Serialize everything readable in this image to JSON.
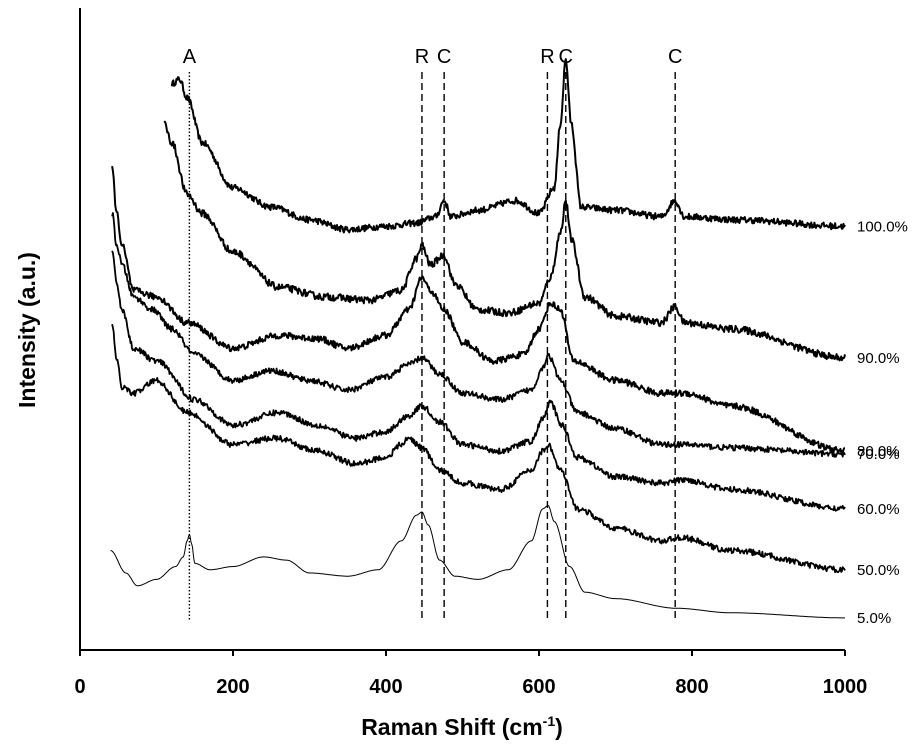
{
  "chart_data": {
    "type": "line",
    "title": "",
    "xlabel": "Raman Shift (cm",
    "xlabel_sup": "-1",
    "xlabel_end": ")",
    "ylabel": "Intensity (a.u.)",
    "xlim": [
      0,
      1000
    ],
    "ylim": [
      0,
      100
    ],
    "x_ticks": [
      "0",
      "200",
      "400",
      "600",
      "800",
      "1000"
    ],
    "grid": false,
    "legend": "none",
    "peak_markers": [
      {
        "label": "A",
        "x": 143,
        "style": "dotted"
      },
      {
        "label": "R",
        "x": 447,
        "style": "dashed"
      },
      {
        "label": "C",
        "x": 476,
        "style": "dashed"
      },
      {
        "label": "R",
        "x": 611,
        "style": "dashed"
      },
      {
        "label": "C",
        "x": 635,
        "style": "dashed"
      },
      {
        "label": "C",
        "x": 778,
        "style": "dashed"
      }
    ],
    "series": [
      {
        "name": "100.0%",
        "noise": 0.5,
        "stroke": 2,
        "points": [
          [
            120,
            88.2
          ],
          [
            130,
            88.9
          ],
          [
            140,
            86
          ],
          [
            160,
            79
          ],
          [
            200,
            72
          ],
          [
            250,
            69
          ],
          [
            300,
            67
          ],
          [
            350,
            65.5
          ],
          [
            400,
            66
          ],
          [
            440,
            66.5
          ],
          [
            465,
            67.5
          ],
          [
            476,
            70
          ],
          [
            485,
            67.5
          ],
          [
            520,
            68.5
          ],
          [
            570,
            70
          ],
          [
            600,
            68
          ],
          [
            620,
            72
          ],
          [
            628,
            82
          ],
          [
            635,
            92
          ],
          [
            642,
            82
          ],
          [
            655,
            69
          ],
          [
            700,
            68.5
          ],
          [
            760,
            67.5
          ],
          [
            778,
            70
          ],
          [
            790,
            67.5
          ],
          [
            860,
            67
          ],
          [
            1000,
            66
          ]
        ]
      },
      {
        "name": "90.0%",
        "noise": 0.55,
        "stroke": 2,
        "points": [
          [
            110,
            82
          ],
          [
            120,
            79
          ],
          [
            140,
            71
          ],
          [
            160,
            68
          ],
          [
            200,
            62
          ],
          [
            260,
            56.5
          ],
          [
            320,
            55
          ],
          [
            380,
            54.5
          ],
          [
            420,
            56
          ],
          [
            440,
            61
          ],
          [
            447,
            63
          ],
          [
            458,
            60
          ],
          [
            476,
            61.5
          ],
          [
            490,
            57
          ],
          [
            520,
            53
          ],
          [
            560,
            52.5
          ],
          [
            600,
            54
          ],
          [
            615,
            58
          ],
          [
            628,
            65
          ],
          [
            635,
            70
          ],
          [
            642,
            64
          ],
          [
            660,
            55
          ],
          [
            700,
            52
          ],
          [
            760,
            51
          ],
          [
            778,
            53.5
          ],
          [
            790,
            51
          ],
          [
            850,
            50
          ],
          [
            1000,
            45.5
          ]
        ]
      },
      {
        "name": "80.0%",
        "noise": 0.5,
        "stroke": 2,
        "points": [
          [
            42,
            75
          ],
          [
            48,
            68
          ],
          [
            55,
            63
          ],
          [
            70,
            56
          ],
          [
            100,
            55
          ],
          [
            140,
            51
          ],
          [
            200,
            47
          ],
          [
            260,
            49
          ],
          [
            310,
            48.5
          ],
          [
            350,
            47
          ],
          [
            400,
            49
          ],
          [
            430,
            53
          ],
          [
            447,
            58
          ],
          [
            458,
            56
          ],
          [
            476,
            53
          ],
          [
            500,
            48
          ],
          [
            540,
            45
          ],
          [
            580,
            46
          ],
          [
            600,
            50
          ],
          [
            615,
            54
          ],
          [
            628,
            53
          ],
          [
            645,
            45
          ],
          [
            700,
            42
          ],
          [
            760,
            40
          ],
          [
            790,
            40
          ],
          [
            850,
            38
          ],
          [
            1000,
            31
          ]
        ]
      },
      {
        "name": "70.0%",
        "noise": 0.45,
        "stroke": 1.8,
        "points": [
          [
            42,
            68
          ],
          [
            48,
            63
          ],
          [
            55,
            60
          ],
          [
            70,
            55
          ],
          [
            95,
            53
          ],
          [
            120,
            50
          ],
          [
            150,
            46
          ],
          [
            200,
            42
          ],
          [
            250,
            43.5
          ],
          [
            300,
            42
          ],
          [
            350,
            40.5
          ],
          [
            400,
            42.5
          ],
          [
            430,
            44.5
          ],
          [
            447,
            45.5
          ],
          [
            470,
            43
          ],
          [
            500,
            40
          ],
          [
            550,
            39
          ],
          [
            590,
            40.5
          ],
          [
            605,
            44
          ],
          [
            612,
            46
          ],
          [
            628,
            42
          ],
          [
            650,
            37
          ],
          [
            700,
            34.5
          ],
          [
            760,
            32
          ],
          [
            790,
            32
          ],
          [
            850,
            31.5
          ],
          [
            1000,
            30.5
          ]
        ]
      },
      {
        "name": "60.0%",
        "noise": 0.45,
        "stroke": 1.8,
        "points": [
          [
            42,
            62
          ],
          [
            48,
            57
          ],
          [
            55,
            53
          ],
          [
            70,
            47
          ],
          [
            100,
            45
          ],
          [
            150,
            39
          ],
          [
            200,
            35
          ],
          [
            260,
            37
          ],
          [
            310,
            35
          ],
          [
            360,
            33
          ],
          [
            400,
            34
          ],
          [
            430,
            36.5
          ],
          [
            447,
            38
          ],
          [
            470,
            35.5
          ],
          [
            500,
            32
          ],
          [
            550,
            31
          ],
          [
            590,
            32.5
          ],
          [
            605,
            36
          ],
          [
            615,
            38.5
          ],
          [
            630,
            35
          ],
          [
            650,
            30
          ],
          [
            700,
            27
          ],
          [
            760,
            26
          ],
          [
            790,
            26.5
          ],
          [
            850,
            25
          ],
          [
            1000,
            22
          ]
        ]
      },
      {
        "name": "50.0%",
        "noise": 0.45,
        "stroke": 1.8,
        "points": [
          [
            42,
            51
          ],
          [
            48,
            45
          ],
          [
            55,
            41
          ],
          [
            70,
            40
          ],
          [
            100,
            42
          ],
          [
            140,
            37
          ],
          [
            200,
            32
          ],
          [
            255,
            33
          ],
          [
            310,
            31
          ],
          [
            360,
            29
          ],
          [
            400,
            30
          ],
          [
            420,
            32
          ],
          [
            430,
            33
          ],
          [
            447,
            31.5
          ],
          [
            470,
            28
          ],
          [
            500,
            26
          ],
          [
            550,
            25
          ],
          [
            590,
            28
          ],
          [
            605,
            31
          ],
          [
            612,
            32
          ],
          [
            628,
            28
          ],
          [
            650,
            22
          ],
          [
            700,
            19
          ],
          [
            760,
            17
          ],
          [
            785,
            17.5
          ],
          [
            850,
            15.5
          ],
          [
            1000,
            12.5
          ]
        ]
      },
      {
        "name": "5.0%",
        "noise": 0,
        "stroke": 1,
        "points": [
          [
            40,
            15.5
          ],
          [
            60,
            12
          ],
          [
            75,
            10
          ],
          [
            100,
            11
          ],
          [
            125,
            13
          ],
          [
            135,
            14.5
          ],
          [
            140,
            17
          ],
          [
            143,
            18
          ],
          [
            146,
            16.5
          ],
          [
            150,
            13.5
          ],
          [
            170,
            12.5
          ],
          [
            200,
            13
          ],
          [
            240,
            14.5
          ],
          [
            270,
            14
          ],
          [
            300,
            12
          ],
          [
            350,
            11.5
          ],
          [
            390,
            12.5
          ],
          [
            420,
            17
          ],
          [
            440,
            21
          ],
          [
            447,
            21.5
          ],
          [
            455,
            19.5
          ],
          [
            470,
            14
          ],
          [
            490,
            11.5
          ],
          [
            520,
            11
          ],
          [
            560,
            12.5
          ],
          [
            590,
            17
          ],
          [
            605,
            22
          ],
          [
            612,
            22.5
          ],
          [
            620,
            20
          ],
          [
            640,
            13
          ],
          [
            660,
            9
          ],
          [
            700,
            8
          ],
          [
            780,
            6.5
          ],
          [
            850,
            5.8
          ],
          [
            1000,
            5
          ]
        ]
      }
    ]
  }
}
